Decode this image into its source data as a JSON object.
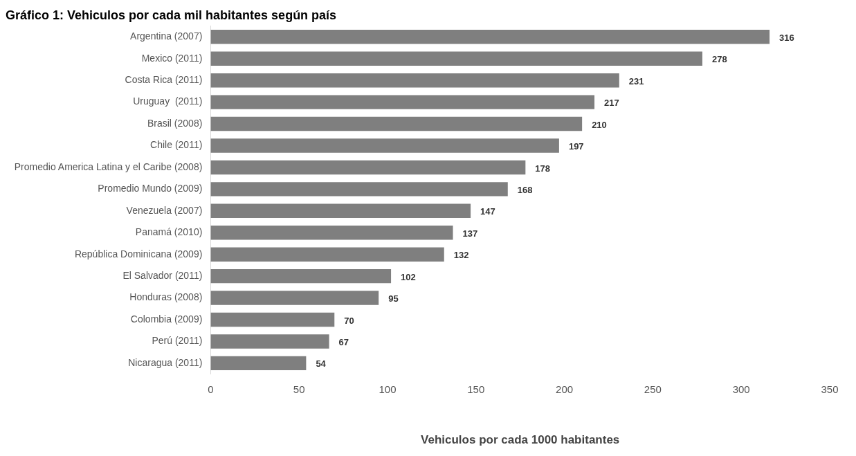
{
  "chart_data": {
    "type": "bar",
    "orientation": "horizontal",
    "title": "Gráfico 1: Vehiculos por cada mil habitantes según país",
    "xlabel": "Vehiculos por cada 1000 habitantes",
    "categories": [
      "Argentina (2007)",
      "Mexico (2011)",
      "Costa Rica (2011)",
      "Uruguay  (2011)",
      "Brasil (2008)",
      "Chile (2011)",
      "Promedio America Latina y el Caribe (2008)",
      "Promedio Mundo (2009)",
      "Venezuela (2007)",
      "Panamá (2010)",
      "República Dominicana (2009)",
      "El Salvador (2011)",
      "Honduras (2008)",
      "Colombia (2009)",
      "Perú (2011)",
      "Nicaragua (2011)"
    ],
    "values": [
      316,
      278,
      231,
      217,
      210,
      197,
      178,
      168,
      147,
      137,
      132,
      102,
      95,
      70,
      67,
      54
    ],
    "color": "#7f7f7f",
    "xlim": [
      0,
      350
    ],
    "xticks": [
      0,
      50,
      100,
      150,
      200,
      250,
      300,
      350
    ],
    "grid": false,
    "legend": false,
    "data_labels": true
  }
}
